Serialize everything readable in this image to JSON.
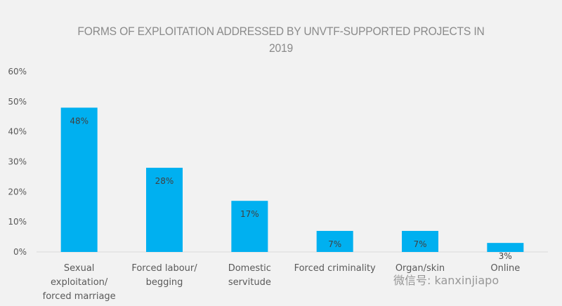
{
  "chart_data": {
    "type": "bar",
    "title": "FORMS OF EXPLOITATION ADDRESSED BY UNVTF-SUPPORTED PROJECTS IN 2019",
    "title_lines": [
      "FORMS OF EXPLOITATION ADDRESSED BY UNVTF-SUPPORTED PROJECTS IN",
      "2019"
    ],
    "categories": [
      [
        "Sexual",
        "exploitation/",
        "forced marriage"
      ],
      [
        "Forced labour/",
        "begging"
      ],
      [
        "Domestic",
        "servitude"
      ],
      [
        "Forced criminality"
      ],
      [
        "Organ/skin"
      ],
      [
        "Online"
      ]
    ],
    "values": [
      48,
      28,
      17,
      7,
      7,
      3
    ],
    "data_labels": [
      "48%",
      "28%",
      "17%",
      "7%",
      "7%",
      "3%"
    ],
    "ylim": [
      0,
      60
    ],
    "yticks": [
      "0%",
      "10%",
      "20%",
      "30%",
      "40%",
      "50%",
      "60%"
    ],
    "xlabel": "",
    "ylabel": "",
    "grid": false,
    "bar_color": "#00b0f0"
  },
  "watermark": "微信号: kanxinjiapo"
}
